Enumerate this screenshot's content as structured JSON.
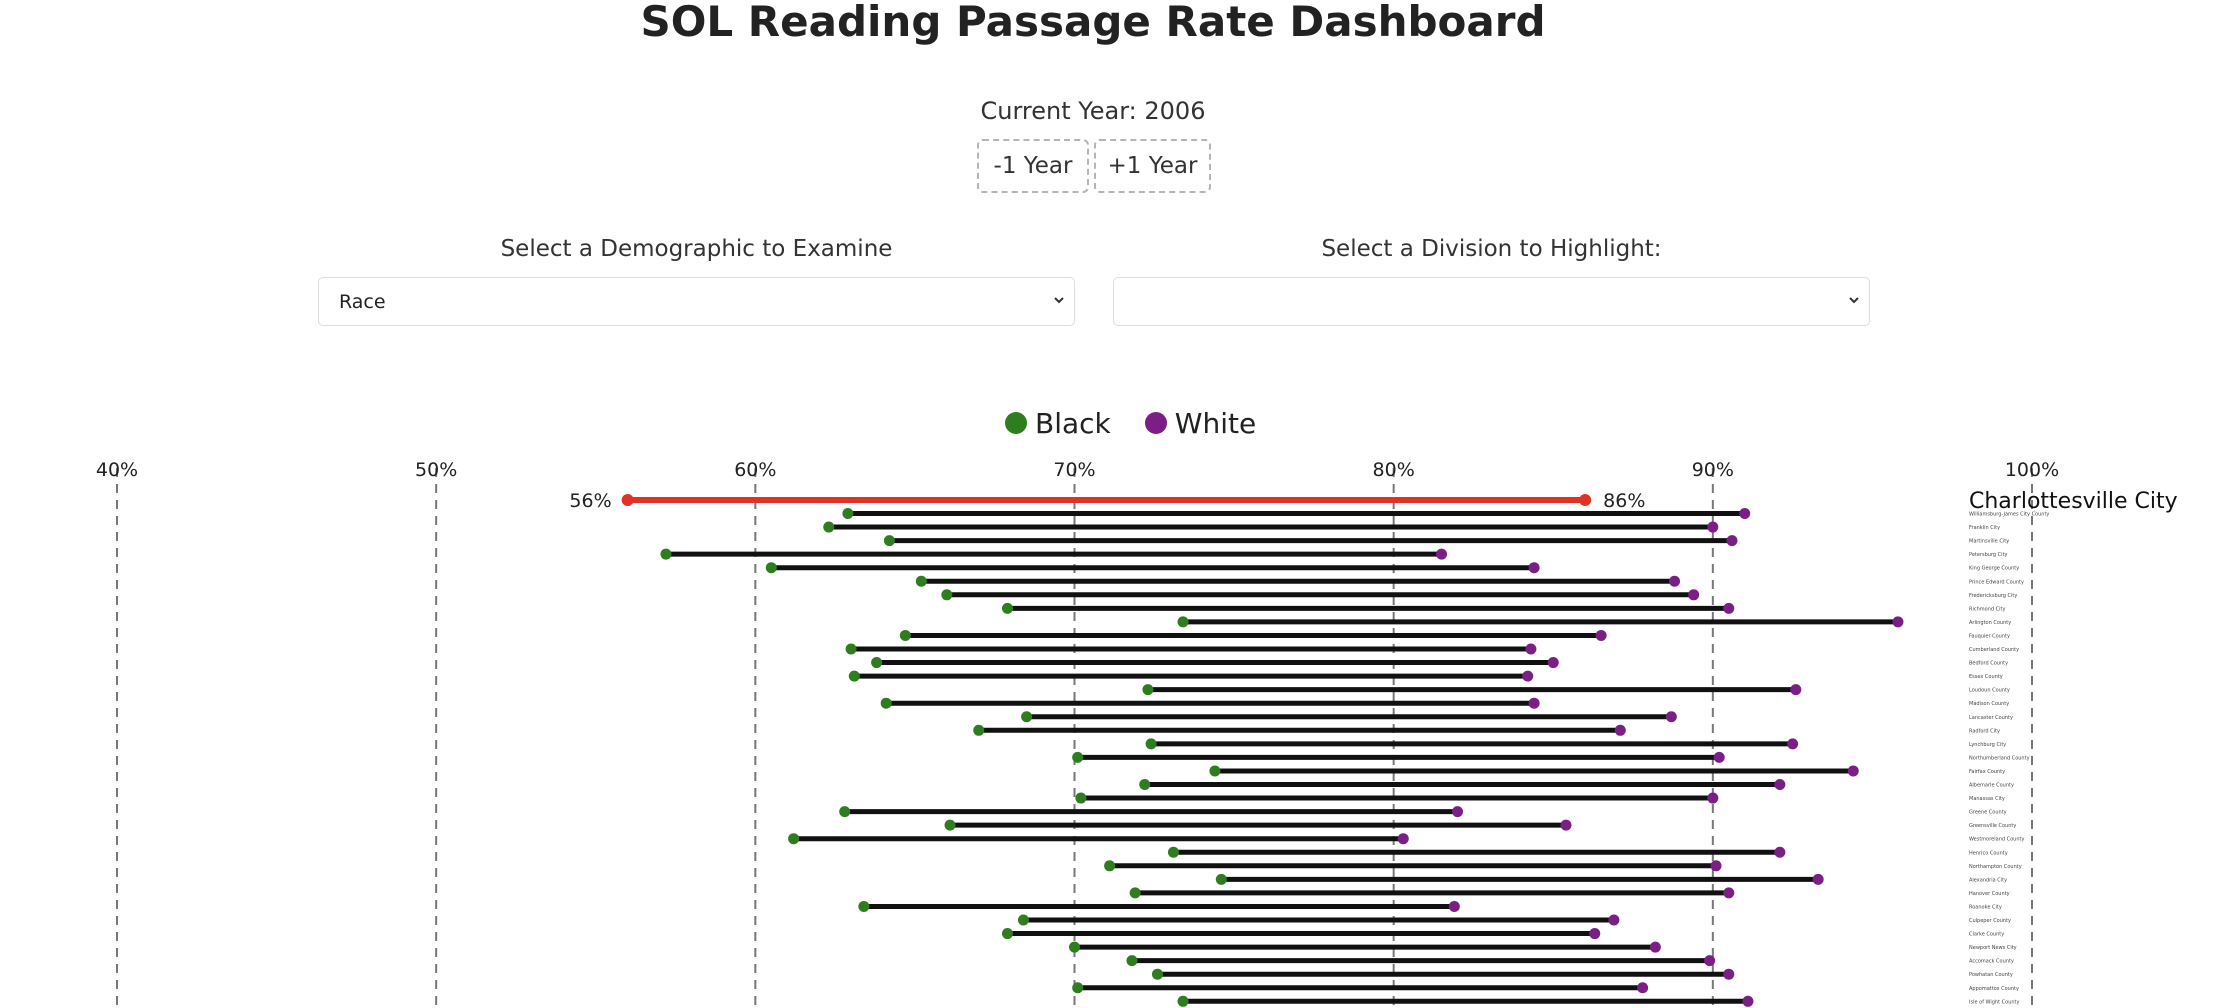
{
  "header": {
    "title": "SOL Reading Passage Rate Dashboard"
  },
  "year": {
    "label": "Current Year: 2006",
    "minus_label": "-1 Year",
    "plus_label": "+1 Year"
  },
  "controls": {
    "demographic_label": "Select a Demographic to Examine",
    "demographic_value": "Race",
    "division_label": "Select a Division to Highlight:",
    "division_value": ""
  },
  "colors": {
    "black": "#2e7d1e",
    "white": "#7b1f86",
    "highlight": "#e23226",
    "bar": "#111111",
    "grid": "#777777"
  },
  "icons": {
    "dropdown": "chevron-down-icon"
  },
  "chart_data": {
    "type": "dumbbell",
    "xlim": [
      40,
      100
    ],
    "ticks": [
      40,
      50,
      60,
      70,
      80,
      90,
      100
    ],
    "tick_labels": [
      "40%",
      "50%",
      "60%",
      "70%",
      "80%",
      "90%",
      "100%"
    ],
    "legend": [
      {
        "name": "Black",
        "color": "#2e7d1e"
      },
      {
        "name": "White",
        "color": "#7b1f86"
      }
    ],
    "highlight": {
      "division": "Charlottesville City",
      "black": 56,
      "white": 86,
      "black_label": "56%",
      "white_label": "86%"
    },
    "rows": [
      {
        "division": "Williamsburg-James City County",
        "black": 62.9,
        "white": 91.0
      },
      {
        "division": "Franklin City",
        "black": 62.3,
        "white": 90.0
      },
      {
        "division": "Martinsville City",
        "black": 64.2,
        "white": 90.6
      },
      {
        "division": "Petersburg City",
        "black": 57.2,
        "white": 81.5
      },
      {
        "division": "King George County",
        "black": 60.5,
        "white": 84.4
      },
      {
        "division": "Prince Edward County",
        "black": 65.2,
        "white": 88.8
      },
      {
        "division": "Fredericksburg City",
        "black": 66.0,
        "white": 89.4
      },
      {
        "division": "Richmond City",
        "black": 67.9,
        "white": 90.5
      },
      {
        "division": "Arlington County",
        "black": 73.4,
        "white": 95.8
      },
      {
        "division": "Fauquier County",
        "black": 64.7,
        "white": 86.5
      },
      {
        "division": "Cumberland County",
        "black": 63.0,
        "white": 84.3
      },
      {
        "division": "Bedford County",
        "black": 63.8,
        "white": 85.0
      },
      {
        "division": "Essex County",
        "black": 63.1,
        "white": 84.2
      },
      {
        "division": "Loudoun County",
        "black": 72.3,
        "white": 92.6
      },
      {
        "division": "Madison County",
        "black": 64.1,
        "white": 84.4
      },
      {
        "division": "Lancaster County",
        "black": 68.5,
        "white": 88.7
      },
      {
        "division": "Radford City",
        "black": 67.0,
        "white": 87.1
      },
      {
        "division": "Lynchburg City",
        "black": 72.4,
        "white": 92.5
      },
      {
        "division": "Northumberland County",
        "black": 70.1,
        "white": 90.2
      },
      {
        "division": "Fairfax County",
        "black": 74.4,
        "white": 94.4
      },
      {
        "division": "Albemarle County",
        "black": 72.2,
        "white": 92.1
      },
      {
        "division": "Manassas City",
        "black": 70.2,
        "white": 90.0
      },
      {
        "division": "Greene County",
        "black": 62.8,
        "white": 82.0
      },
      {
        "division": "Greensville County",
        "black": 66.1,
        "white": 85.4
      },
      {
        "division": "Westmoreland County",
        "black": 61.2,
        "white": 80.3
      },
      {
        "division": "Henrico County",
        "black": 73.1,
        "white": 92.1
      },
      {
        "division": "Northampton County",
        "black": 71.1,
        "white": 90.1
      },
      {
        "division": "Alexandria City",
        "black": 74.6,
        "white": 93.3
      },
      {
        "division": "Hanover County",
        "black": 71.9,
        "white": 90.5
      },
      {
        "division": "Roanoke City",
        "black": 63.4,
        "white": 81.9
      },
      {
        "division": "Culpeper County",
        "black": 68.4,
        "white": 86.9
      },
      {
        "division": "Clarke County",
        "black": 67.9,
        "white": 86.3
      },
      {
        "division": "Newport News City",
        "black": 70.0,
        "white": 88.2
      },
      {
        "division": "Accomack County",
        "black": 71.8,
        "white": 89.9
      },
      {
        "division": "Powhatan County",
        "black": 72.6,
        "white": 90.5
      },
      {
        "division": "Appomattox County",
        "black": 70.1,
        "white": 87.8
      },
      {
        "division": "Isle of Wight County",
        "black": 73.4,
        "white": 91.1
      }
    ]
  }
}
